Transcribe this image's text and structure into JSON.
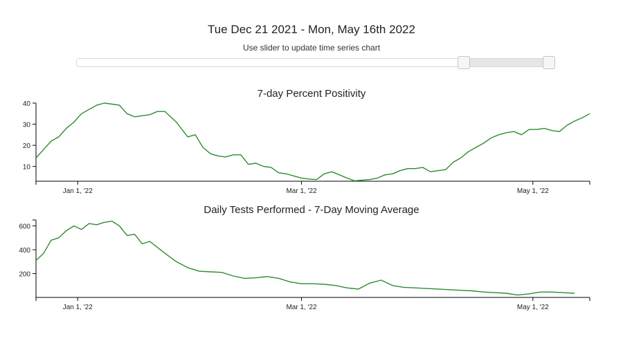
{
  "header": {
    "range_title": "Tue Dec 21 2021 - Mon, May 16th 2022",
    "slider_hint": "Use slider to update time series chart"
  },
  "slider": {
    "start_fraction": 0.818,
    "end_fraction": 1.0
  },
  "colors": {
    "line": "#2e8b2e",
    "axis": "#000000"
  },
  "chart_data": [
    {
      "type": "line",
      "title": "7-day Percent Positivity",
      "xlabel": "",
      "ylabel": "",
      "x_range": [
        "2021-12-21",
        "2022-05-16"
      ],
      "ylim": [
        3,
        40
      ],
      "yticks": [
        10,
        20,
        30,
        40
      ],
      "xticks": [
        {
          "date": "2022-01-01",
          "label": "Jan 1, '22"
        },
        {
          "date": "2022-03-01",
          "label": "Mar 1, '22"
        },
        {
          "date": "2022-05-01",
          "label": "May 1, '22"
        }
      ],
      "grid": false,
      "series": [
        {
          "x": [
            "2021-12-21",
            "2021-12-23",
            "2021-12-25",
            "2021-12-27",
            "2021-12-29",
            "2021-12-31",
            "2022-01-02",
            "2022-01-04",
            "2022-01-06",
            "2022-01-08",
            "2022-01-10",
            "2022-01-12",
            "2022-01-14",
            "2022-01-16",
            "2022-01-18",
            "2022-01-20",
            "2022-01-22",
            "2022-01-24",
            "2022-01-27",
            "2022-01-30",
            "2022-02-01",
            "2022-02-03",
            "2022-02-05",
            "2022-02-07",
            "2022-02-09",
            "2022-02-11",
            "2022-02-13",
            "2022-02-15",
            "2022-02-17",
            "2022-02-19",
            "2022-02-21",
            "2022-02-23",
            "2022-02-25",
            "2022-02-27",
            "2022-03-01",
            "2022-03-03",
            "2022-03-05",
            "2022-03-07",
            "2022-03-09",
            "2022-03-11",
            "2022-03-13",
            "2022-03-15",
            "2022-03-17",
            "2022-03-19",
            "2022-03-21",
            "2022-03-23",
            "2022-03-25",
            "2022-03-27",
            "2022-03-29",
            "2022-03-31",
            "2022-04-02",
            "2022-04-04",
            "2022-04-06",
            "2022-04-08",
            "2022-04-10",
            "2022-04-12",
            "2022-04-14",
            "2022-04-16",
            "2022-04-18",
            "2022-04-20",
            "2022-04-22",
            "2022-04-24",
            "2022-04-26",
            "2022-04-28",
            "2022-04-30",
            "2022-05-02",
            "2022-05-04",
            "2022-05-06",
            "2022-05-08",
            "2022-05-10",
            "2022-05-12",
            "2022-05-14",
            "2022-05-16"
          ],
          "y": [
            14,
            18,
            22,
            24,
            28,
            31,
            35,
            37,
            39,
            40,
            39.5,
            39,
            35,
            33.5,
            34,
            34.5,
            36,
            36,
            31,
            24,
            25,
            19,
            16,
            15,
            14.5,
            15.5,
            15.5,
            11,
            11.5,
            10,
            9.5,
            7,
            6.5,
            5.5,
            4.5,
            4,
            3.8,
            6.5,
            7.5,
            6,
            4.5,
            3.2,
            3.5,
            3.8,
            4.5,
            6,
            6.5,
            8,
            9,
            9,
            9.5,
            7.5,
            8,
            8.5,
            12,
            14,
            17,
            19,
            21,
            23.5,
            25,
            26,
            26.5,
            25,
            27.5,
            27.5,
            28,
            27,
            26.5,
            29.5,
            31.5,
            33,
            35
          ]
        }
      ]
    },
    {
      "type": "line",
      "title": "Daily Tests Performed - 7-Day Moving Average",
      "xlabel": "",
      "ylabel": "",
      "x_range": [
        "2021-12-21",
        "2022-05-16"
      ],
      "ylim": [
        0,
        650
      ],
      "yticks": [
        200,
        400,
        600
      ],
      "xticks": [
        {
          "date": "2022-01-01",
          "label": "Jan 1, '22"
        },
        {
          "date": "2022-03-01",
          "label": "Mar 1, '22"
        },
        {
          "date": "2022-05-01",
          "label": "May 1, '22"
        }
      ],
      "grid": false,
      "series": [
        {
          "x": [
            "2021-12-21",
            "2021-12-23",
            "2021-12-25",
            "2021-12-27",
            "2021-12-29",
            "2021-12-31",
            "2022-01-02",
            "2022-01-04",
            "2022-01-06",
            "2022-01-08",
            "2022-01-10",
            "2022-01-12",
            "2022-01-14",
            "2022-01-16",
            "2022-01-18",
            "2022-01-20",
            "2022-01-22",
            "2022-01-24",
            "2022-01-27",
            "2022-01-30",
            "2022-02-02",
            "2022-02-05",
            "2022-02-08",
            "2022-02-11",
            "2022-02-14",
            "2022-02-17",
            "2022-02-20",
            "2022-02-23",
            "2022-02-26",
            "2022-03-01",
            "2022-03-04",
            "2022-03-07",
            "2022-03-10",
            "2022-03-13",
            "2022-03-16",
            "2022-03-19",
            "2022-03-22",
            "2022-03-25",
            "2022-03-28",
            "2022-03-31",
            "2022-04-03",
            "2022-04-06",
            "2022-04-09",
            "2022-04-12",
            "2022-04-15",
            "2022-04-18",
            "2022-04-21",
            "2022-04-24",
            "2022-04-27",
            "2022-04-30",
            "2022-05-03",
            "2022-05-06",
            "2022-05-09",
            "2022-05-12"
          ],
          "y": [
            310,
            370,
            480,
            500,
            560,
            600,
            570,
            620,
            610,
            630,
            640,
            600,
            520,
            530,
            450,
            470,
            420,
            370,
            300,
            250,
            220,
            215,
            210,
            180,
            160,
            165,
            175,
            160,
            130,
            115,
            115,
            110,
            100,
            80,
            70,
            120,
            145,
            100,
            85,
            80,
            75,
            70,
            65,
            60,
            55,
            45,
            40,
            35,
            20,
            30,
            45,
            45,
            40,
            35
          ]
        }
      ]
    }
  ]
}
